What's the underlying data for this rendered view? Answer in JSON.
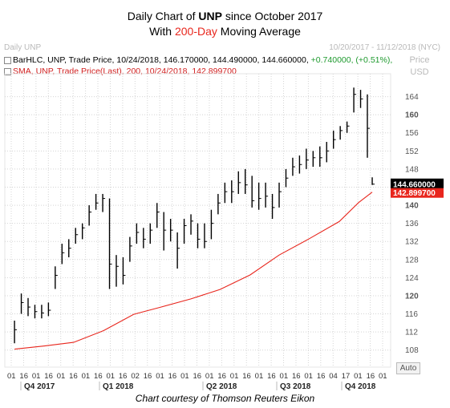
{
  "title": {
    "line1_pre": "Daily Chart of ",
    "line1_bold": "UNP",
    "line1_post": " since October 2017",
    "line2_pre": "With ",
    "line2_accent": "200-Day",
    "line2_post": " Moving Average"
  },
  "watermark_left": "Daily UNP",
  "date_range": "10/20/2017 - 11/12/2018 (NYC)",
  "price_label": "Price",
  "currency": "USD",
  "auto_label": "Auto",
  "legend": {
    "bar_prefix": "BarHLC, UNP, Trade Price, 10/24/2018, 146.170000, 144.490000, 144.660000, ",
    "bar_change": "+0.740000, (+0.51%),",
    "sma": "SMA, UNP, Trade Price(Last), 200, 10/24/2018, 142.899700"
  },
  "tags": {
    "last_price": "144.660000",
    "sma_value": "142.899700"
  },
  "credit": "Chart courtesy of Thomson Reuters Eikon",
  "colors": {
    "price": "#000000",
    "sma": "#e8261d",
    "grid": "#d4d4d4",
    "accent": "#e8261d"
  },
  "chart_data": {
    "type": "line",
    "series": [
      {
        "style": "ohlc-bars",
        "x": [
          "2017-10-20",
          "2017-10-27",
          "2017-11-03",
          "2017-11-10",
          "2017-11-17",
          "2017-11-24",
          "2017-12-01",
          "2017-12-08",
          "2017-12-15",
          "2017-12-22",
          "2017-12-29",
          "2018-01-05",
          "2018-01-12",
          "2018-01-19",
          "2018-01-26",
          "2018-02-02",
          "2018-02-09",
          "2018-02-16",
          "2018-02-23",
          "2018-03-02",
          "2018-03-09",
          "2018-03-16",
          "2018-03-23",
          "2018-03-30",
          "2018-04-06",
          "2018-04-13",
          "2018-04-20",
          "2018-04-27",
          "2018-05-04",
          "2018-05-11",
          "2018-05-18",
          "2018-05-25",
          "2018-06-01",
          "2018-06-08",
          "2018-06-15",
          "2018-06-22",
          "2018-06-29",
          "2018-07-06",
          "2018-07-13",
          "2018-07-20",
          "2018-07-27",
          "2018-08-03",
          "2018-08-10",
          "2018-08-17",
          "2018-08-24",
          "2018-08-31",
          "2018-09-07",
          "2018-09-14",
          "2018-09-21",
          "2018-09-28",
          "2018-10-05",
          "2018-10-12",
          "2018-10-19",
          "2018-10-24"
        ],
        "close": [
          112.5,
          118.5,
          117.5,
          116.5,
          116.2,
          116.8,
          124.5,
          129.5,
          130.5,
          133.5,
          135.0,
          138.5,
          140.5,
          141.5,
          127.0,
          126.5,
          124.5,
          131.0,
          134.0,
          132.5,
          134.5,
          138.5,
          134.5,
          134.5,
          130.5,
          135.5,
          136.5,
          132.5,
          132.0,
          136.0,
          140.5,
          143.0,
          143.0,
          145.0,
          144.5,
          141.0,
          141.5,
          142.0,
          139.5,
          143.0,
          146.0,
          148.5,
          149.0,
          150.0,
          150.5,
          150.5,
          152.0,
          154.5,
          156.5,
          157.5,
          164.5,
          163.5,
          157.0,
          144.66
        ],
        "high": [
          114.5,
          120.5,
          119.5,
          118.0,
          118.0,
          118.5,
          126.5,
          131.5,
          132.5,
          135.0,
          136.0,
          140.0,
          142.5,
          142.5,
          141.5,
          129.0,
          128.5,
          133.0,
          136.0,
          135.0,
          136.0,
          140.5,
          138.5,
          137.0,
          134.0,
          137.0,
          138.0,
          136.0,
          136.0,
          139.0,
          142.5,
          145.0,
          145.5,
          147.5,
          148.0,
          146.5,
          145.0,
          145.0,
          142.5,
          145.0,
          148.0,
          150.5,
          151.0,
          152.5,
          152.0,
          153.0,
          154.0,
          156.5,
          157.5,
          158.5,
          166.0,
          165.5,
          164.5,
          146.17
        ],
        "low": [
          109.5,
          116.0,
          115.5,
          115.0,
          115.0,
          115.5,
          121.5,
          127.0,
          128.5,
          131.5,
          132.5,
          135.5,
          139.0,
          138.5,
          121.5,
          122.0,
          122.5,
          127.5,
          131.5,
          130.5,
          131.5,
          135.0,
          130.0,
          132.0,
          126.0,
          131.5,
          133.5,
          130.5,
          130.5,
          132.5,
          138.0,
          140.5,
          140.5,
          142.5,
          142.5,
          139.5,
          139.0,
          139.5,
          137.0,
          139.5,
          144.0,
          146.5,
          147.0,
          148.0,
          148.5,
          148.5,
          149.5,
          152.5,
          154.5,
          156.0,
          160.5,
          161.5,
          150.5,
          144.49
        ]
      },
      {
        "name": "SMA 200",
        "x": [
          "2017-10-20",
          "2017-11-20",
          "2017-12-20",
          "2018-01-20",
          "2018-02-20",
          "2018-03-20",
          "2018-04-20",
          "2018-05-20",
          "2018-06-20",
          "2018-07-20",
          "2018-08-20",
          "2018-09-20",
          "2018-10-10",
          "2018-10-24"
        ],
        "values": [
          108.2,
          108.9,
          109.7,
          112.3,
          115.9,
          117.5,
          119.3,
          121.4,
          124.6,
          129.0,
          132.6,
          136.4,
          140.6,
          142.9
        ]
      }
    ],
    "y_ticks": [
      108,
      112,
      116,
      120,
      124,
      128,
      132,
      136,
      140,
      144,
      148,
      152,
      156,
      160,
      164
    ],
    "bold_y_ticks": [
      120,
      140,
      160
    ],
    "ylim": [
      106,
      168
    ],
    "x_tick_labels": [
      "01",
      "16",
      "01",
      "16",
      "01",
      "16",
      "01",
      "16",
      "01",
      "16",
      "02",
      "16",
      "01",
      "16",
      "01",
      "16",
      "01",
      "16",
      "01",
      "16",
      "01",
      "16",
      "01",
      "16",
      "01",
      "16",
      "04",
      "17",
      "01",
      "16",
      "01"
    ],
    "quarter_labels": [
      "Q4 2017",
      "Q1 2018",
      "Q2 2018",
      "Q3 2018",
      "Q4 2018"
    ],
    "grid": true,
    "legend_position": "top-left"
  }
}
